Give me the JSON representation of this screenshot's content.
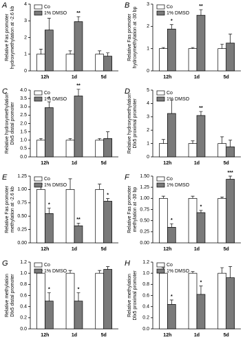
{
  "chart_data": [
    {
      "type": "bar",
      "panel": "A",
      "ylabel": [
        "Relative Fas promoter",
        "hydroxymethylation at -2.6 kb"
      ],
      "categories": [
        "12h",
        "1d",
        "5d"
      ],
      "series": [
        {
          "name": "Co",
          "color": "#ffffff",
          "values": [
            1.0,
            1.0,
            1.0
          ],
          "errors": [
            0.3,
            0.2,
            0.2
          ]
        },
        {
          "name": "1% DMSO",
          "color": "#7a7a7a",
          "values": [
            2.45,
            2.95,
            0.88
          ],
          "errors": [
            0.7,
            0.3,
            0.2
          ],
          "annotations": [
            null,
            "**",
            null
          ]
        }
      ],
      "ylim": [
        0,
        4
      ],
      "yticks": [
        0,
        1,
        2,
        3,
        4
      ]
    },
    {
      "type": "bar",
      "panel": "B",
      "ylabel": [
        "Relative Fas promoter",
        "hydroxymethylation at -30 bp"
      ],
      "categories": [
        "12h",
        "1d",
        "5d"
      ],
      "series": [
        {
          "name": "Co",
          "color": "#ffffff",
          "values": [
            1.0,
            1.0,
            1.0
          ],
          "errors": [
            0.05,
            0.05,
            0.2
          ]
        },
        {
          "name": "1% DMSO",
          "color": "#7a7a7a",
          "values": [
            1.88,
            2.5,
            1.25
          ],
          "errors": [
            0.2,
            0.25,
            0.4
          ],
          "annotations": [
            "*",
            "**",
            null
          ]
        }
      ],
      "ylim": [
        0,
        3
      ],
      "yticks": [
        0,
        1,
        2,
        3
      ]
    },
    {
      "type": "bar",
      "panel": "C",
      "ylabel": [
        "Relative hydroxymethylation",
        "Dlx5 distal promoter"
      ],
      "categories": [
        "12h",
        "1d",
        "5d"
      ],
      "series": [
        {
          "name": "Co",
          "color": "#ffffff",
          "values": [
            1.0,
            1.0,
            1.0
          ],
          "errors": [
            0.1,
            0.1,
            0.1
          ]
        },
        {
          "name": "1% DMSO",
          "color": "#7a7a7a",
          "values": [
            2.95,
            3.65,
            1.1
          ],
          "errors": [
            0.35,
            0.4,
            0.4
          ],
          "annotations": [
            "*",
            "**",
            null
          ]
        }
      ],
      "ylim": [
        0,
        4
      ],
      "yticks": [
        {
          "value": 0,
          "label": "0.0"
        },
        {
          "value": 0.5,
          "label": "0.5"
        },
        {
          "value": 1,
          "label": "1.0"
        },
        {
          "value": 1.5,
          "label": "1.5"
        },
        {
          "value": 2,
          "label": "2.0"
        },
        {
          "value": 2.5,
          "label": "2.5"
        },
        {
          "value": 3,
          "label": "3.0"
        },
        {
          "value": 3.5,
          "label": "3.5"
        },
        {
          "value": 4,
          "label": "4.0"
        }
      ]
    },
    {
      "type": "bar",
      "panel": "D",
      "ylabel": [
        "Relative hydroxymethylation",
        "Dlx5 proximal promoter"
      ],
      "categories": [
        "12h",
        "1d",
        "5d"
      ],
      "series": [
        {
          "name": "Co",
          "color": "#ffffff",
          "values": [
            1.0,
            1.0,
            1.0
          ],
          "errors": [
            0.3,
            0.2,
            0.5
          ]
        },
        {
          "name": "1% DMSO",
          "color": "#7a7a7a",
          "values": [
            3.25,
            3.1,
            0.75
          ],
          "errors": [
            1.0,
            0.3,
            0.5
          ],
          "annotations": [
            null,
            "**",
            null
          ]
        }
      ],
      "ylim": [
        0,
        5
      ],
      "yticks": [
        0,
        1,
        2,
        3,
        4,
        5
      ]
    },
    {
      "type": "bar",
      "panel": "E",
      "ylabel": [
        "Relative Fas promoter",
        "methylation at -2.6 kb"
      ],
      "categories": [
        "12h",
        "1d",
        "5d"
      ],
      "series": [
        {
          "name": "Co",
          "color": "#ffffff",
          "values": [
            1.0,
            1.0,
            1.0
          ],
          "errors": [
            0.1,
            0.2,
            0.1
          ]
        },
        {
          "name": "1% DMSO",
          "color": "#7a7a7a",
          "values": [
            0.55,
            0.32,
            0.78
          ],
          "errors": [
            0.1,
            0.05,
            0.05
          ],
          "annotations": [
            "*",
            "**",
            "*"
          ]
        }
      ],
      "ylim": [
        0,
        1.25
      ],
      "yticks": [
        {
          "value": 0,
          "label": "0.00"
        },
        {
          "value": 0.25,
          "label": "0.25"
        },
        {
          "value": 0.5,
          "label": "0.50"
        },
        {
          "value": 0.75,
          "label": "0.75"
        },
        {
          "value": 1,
          "label": "1.00"
        },
        {
          "value": 1.25,
          "label": "1.25"
        }
      ]
    },
    {
      "type": "bar",
      "panel": "F",
      "ylabel": [
        "Relative Fas promoter",
        "methylation at -30 bp"
      ],
      "categories": [
        "12h",
        "1d",
        "5d"
      ],
      "series": [
        {
          "name": "Co",
          "color": "#ffffff",
          "values": [
            1.0,
            1.0,
            1.0
          ],
          "errors": [
            0.05,
            0.05,
            0.03
          ]
        },
        {
          "name": "1% DMSO",
          "color": "#7a7a7a",
          "values": [
            0.35,
            0.68,
            1.43
          ],
          "errors": [
            0.08,
            0.05,
            0.07
          ],
          "annotations": [
            "*",
            "*",
            "***"
          ]
        }
      ],
      "ylim": [
        0,
        1.5
      ],
      "yticks": [
        {
          "value": 0,
          "label": "0.00"
        },
        {
          "value": 0.25,
          "label": "0.25"
        },
        {
          "value": 0.5,
          "label": "0.50"
        },
        {
          "value": 0.75,
          "label": "0.75"
        },
        {
          "value": 1,
          "label": "1.00"
        },
        {
          "value": 1.25,
          "label": "1.25"
        },
        {
          "value": 1.5,
          "label": "1.50"
        }
      ]
    },
    {
      "type": "bar",
      "panel": "G",
      "ylabel": [
        "Relative methylation",
        "Dlx5 distal promoter"
      ],
      "categories": [
        "12h",
        "1d",
        "5d"
      ],
      "series": [
        {
          "name": "Co",
          "color": "#ffffff",
          "values": [
            1.0,
            1.0,
            1.0
          ],
          "errors": [
            0.05,
            0.05,
            0.05
          ]
        },
        {
          "name": "1% DMSO",
          "color": "#7a7a7a",
          "values": [
            0.5,
            0.5,
            1.07
          ],
          "errors": [
            0.15,
            0.15,
            0.05
          ],
          "annotations": [
            "*",
            "*",
            null
          ]
        }
      ],
      "ylim": [
        0,
        1.2
      ],
      "yticks": [
        {
          "value": 0,
          "label": "0.0"
        },
        {
          "value": 0.2,
          "label": "0.2"
        },
        {
          "value": 0.4,
          "label": "0.4"
        },
        {
          "value": 0.6,
          "label": "0.6"
        },
        {
          "value": 0.8,
          "label": "0.8"
        },
        {
          "value": 1,
          "label": "1.0"
        },
        {
          "value": 1.2,
          "label": "1.2"
        }
      ]
    },
    {
      "type": "bar",
      "panel": "H",
      "ylabel": [
        "Relative methylation",
        "Dlx5 proximal promoter"
      ],
      "categories": [
        "12h",
        "1d",
        "5d"
      ],
      "series": [
        {
          "name": "Co",
          "color": "#ffffff",
          "values": [
            1.0,
            1.0,
            1.0
          ],
          "errors": [
            0.1,
            0.03,
            0.1
          ]
        },
        {
          "name": "1% DMSO",
          "color": "#7a7a7a",
          "values": [
            0.44,
            0.62,
            0.92
          ],
          "errors": [
            0.08,
            0.15,
            0.2
          ],
          "annotations": [
            "*",
            "*",
            null
          ]
        }
      ],
      "ylim": [
        0,
        1.2
      ],
      "yticks": [
        {
          "value": 0,
          "label": "0.0"
        },
        {
          "value": 0.2,
          "label": "0.2"
        },
        {
          "value": 0.4,
          "label": "0.4"
        },
        {
          "value": 0.6,
          "label": "0.6"
        },
        {
          "value": 0.8,
          "label": "0.8"
        },
        {
          "value": 1,
          "label": "1.0"
        },
        {
          "value": 1.2,
          "label": "1.2"
        }
      ]
    }
  ]
}
